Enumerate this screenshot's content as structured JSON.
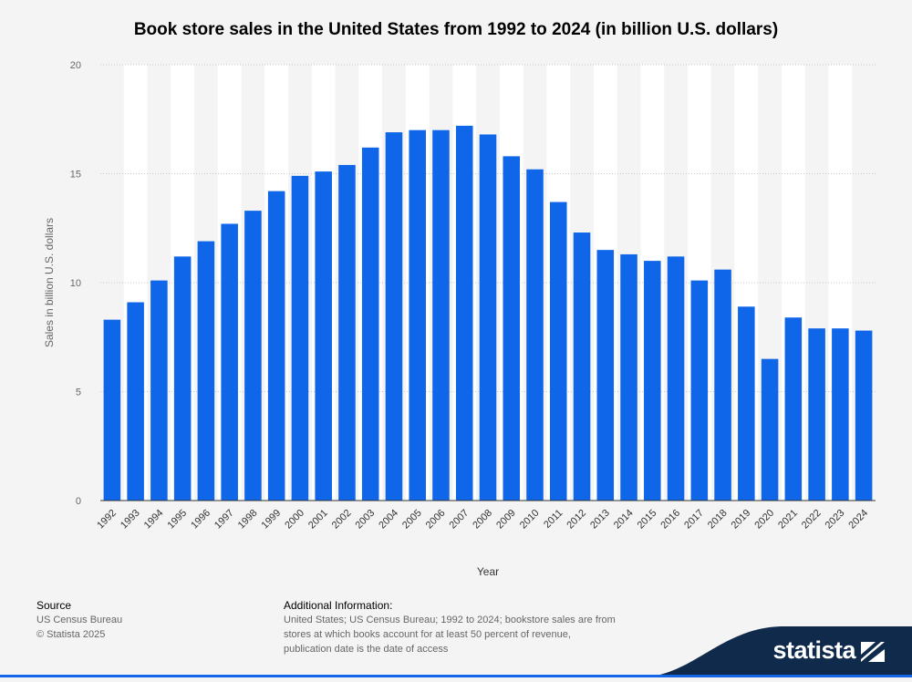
{
  "title": "Book store sales in the United States from 1992 to 2024 (in billion U.S. dollars)",
  "chart_data": {
    "type": "bar",
    "title": "Book store sales in the United States from 1992 to 2024 (in billion U.S. dollars)",
    "xlabel": "Year",
    "ylabel": "Sales in billion U.S. dollars",
    "ylim": [
      0,
      20
    ],
    "yticks": [
      0,
      5,
      10,
      15,
      20
    ],
    "grid": true,
    "bar_color": "#0f66e9",
    "categories": [
      "1992",
      "1993",
      "1994",
      "1995",
      "1996",
      "1997",
      "1998",
      "1999",
      "2000",
      "2001",
      "2002",
      "2003",
      "2004",
      "2005",
      "2006",
      "2007",
      "2008",
      "2009",
      "2010",
      "2011",
      "2012",
      "2013",
      "2014",
      "2015",
      "2016",
      "2017",
      "2018",
      "2019",
      "2020",
      "2021",
      "2022",
      "2023",
      "2024"
    ],
    "values": [
      8.3,
      9.1,
      10.1,
      11.2,
      11.9,
      12.7,
      13.3,
      14.2,
      14.9,
      15.1,
      15.4,
      16.2,
      16.9,
      17.0,
      17.0,
      17.2,
      16.8,
      15.8,
      15.2,
      13.7,
      12.3,
      11.5,
      11.3,
      11.0,
      11.2,
      10.1,
      10.6,
      8.9,
      6.5,
      8.4,
      7.9,
      7.9,
      7.8
    ]
  },
  "footer": {
    "source_heading": "Source",
    "source_lines": [
      "US Census Bureau",
      "© Statista 2025"
    ],
    "info_heading": "Additional Information:",
    "info_lines": [
      "United States; US Census Bureau; 1992 to 2024; bookstore sales are from",
      "stores at which books account for at least 50 percent of revenue,",
      "publication date is the date of access"
    ]
  },
  "brand": {
    "name": "statista",
    "bg_color": "#0f2a4a",
    "accent_color": "#1565e8"
  }
}
